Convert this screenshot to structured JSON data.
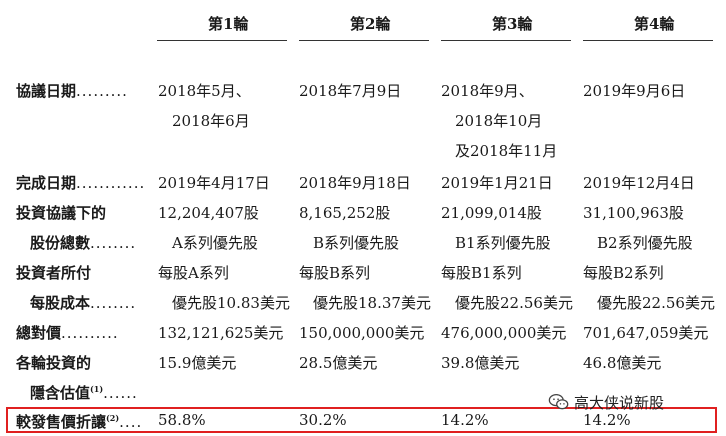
{
  "columns": [
    "第1輪",
    "第2輪",
    "第3輪",
    "第4輪"
  ],
  "rows": [
    {
      "label_lines": [
        "協議日期"
      ],
      "dots": ".........",
      "cells": [
        [
          "2018年5月、",
          "2018年6月"
        ],
        [
          "2018年7月9日"
        ],
        [
          "2018年9月、",
          "2018年10月",
          "及2018年11月"
        ],
        [
          "2019年9月6日"
        ]
      ]
    },
    {
      "label_lines": [
        "完成日期"
      ],
      "dots": "............",
      "cells": [
        [
          "2019年4月17日"
        ],
        [
          "2018年9月18日"
        ],
        [
          "2019年1月21日"
        ],
        [
          "2019年12月4日"
        ]
      ]
    },
    {
      "label_lines": [
        "投資協議下的",
        "股份總數"
      ],
      "dots": "........",
      "cells": [
        [
          "12,204,407股",
          "A系列優先股"
        ],
        [
          "8,165,252股",
          "B系列優先股"
        ],
        [
          "21,099,014股",
          "B1系列優先股"
        ],
        [
          "31,100,963股",
          "B2系列優先股"
        ]
      ]
    },
    {
      "label_lines": [
        "投資者所付",
        "每股成本"
      ],
      "dots": "........",
      "cells": [
        [
          "每股A系列",
          "優先股10.83美元"
        ],
        [
          "每股B系列",
          "優先股18.37美元"
        ],
        [
          "每股B1系列",
          "優先股22.56美元"
        ],
        [
          "每股B2系列",
          "優先股22.56美元"
        ]
      ]
    },
    {
      "label_lines": [
        "總對價"
      ],
      "dots": "..........",
      "cells": [
        [
          "132,121,625美元"
        ],
        [
          "150,000,000美元"
        ],
        [
          "476,000,000美元"
        ],
        [
          "701,647,059美元"
        ]
      ]
    },
    {
      "label_lines": [
        "各輪投資的",
        "隱含估值"
      ],
      "sup": "(1)",
      "dots": "......",
      "cells": [
        [
          "15.9億美元"
        ],
        [
          "28.5億美元"
        ],
        [
          "39.8億美元"
        ],
        [
          "46.8億美元"
        ]
      ]
    },
    {
      "label_lines": [
        "較發售價折讓"
      ],
      "sup": "(2)",
      "dots": "....",
      "cells": [
        [
          "58.8%"
        ],
        [
          "30.2%"
        ],
        [
          "14.2%"
        ],
        [
          "14.2%"
        ]
      ]
    }
  ],
  "watermark": {
    "text": "高大侠说新股",
    "icon": "wechat-icon"
  }
}
